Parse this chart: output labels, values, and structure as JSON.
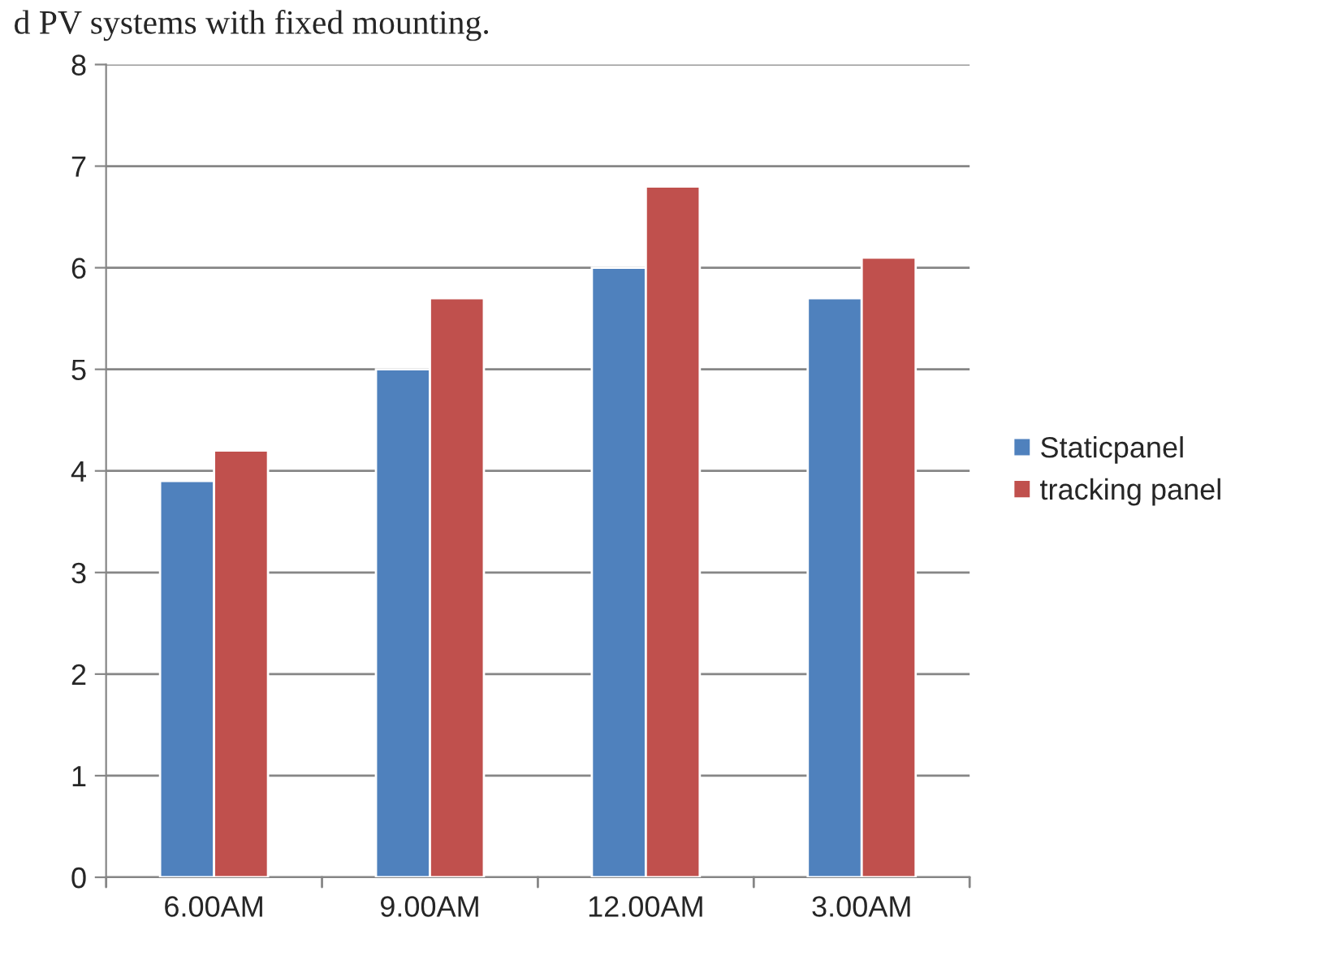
{
  "chart_data": {
    "type": "bar",
    "annotations": [
      "d PV systems with fixed mounting."
    ],
    "categories": [
      "6.00AM",
      "9.00AM",
      "12.00AM",
      "3.00AM"
    ],
    "series": [
      {
        "name": "Staticpanel",
        "color": "#4f81bd",
        "values": [
          3.9,
          5.0,
          6.0,
          5.7
        ]
      },
      {
        "name": "tracking panel",
        "color": "#c0504d",
        "values": [
          4.2,
          5.7,
          6.8,
          6.1
        ]
      }
    ],
    "ylim": [
      0,
      8
    ],
    "yticks": [
      0,
      1,
      2,
      3,
      4,
      5,
      6,
      7,
      8
    ],
    "grid": "y",
    "legend": "right"
  }
}
